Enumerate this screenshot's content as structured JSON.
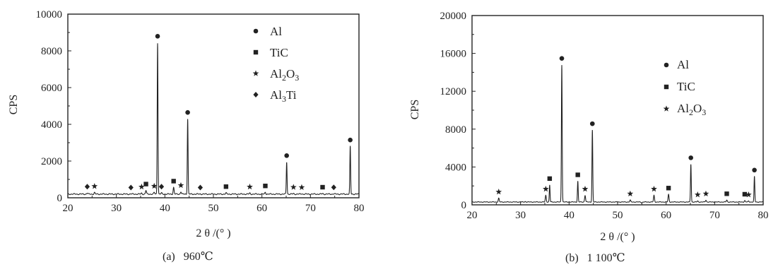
{
  "chart_data": [
    {
      "type": "line",
      "caption": "(a)   960℃",
      "xlabel": "2 θ /(°  )",
      "ylabel": "CPS",
      "xlim": [
        20,
        80
      ],
      "ylim": [
        0,
        10000
      ],
      "xticks": [
        "20",
        "30",
        "40",
        "50",
        "60",
        "70",
        "80"
      ],
      "yticks": [
        "0",
        "2000",
        "4000",
        "6000",
        "8000",
        "10000"
      ],
      "grid": false,
      "legend_position": "top-right",
      "legend": [
        {
          "symbol": "circle",
          "label": "Al"
        },
        {
          "symbol": "square",
          "label": "TiC"
        },
        {
          "symbol": "star",
          "label": "Al₂O₃"
        },
        {
          "symbol": "diamond",
          "label": "Al₃Ti"
        }
      ],
      "baseline": 200,
      "peaks": [
        {
          "x": 24.0,
          "y": 260,
          "phase": "diamond"
        },
        {
          "x": 25.5,
          "y": 280,
          "phase": "star"
        },
        {
          "x": 33.0,
          "y": 210,
          "phase": "diamond"
        },
        {
          "x": 35.2,
          "y": 250,
          "phase": "star"
        },
        {
          "x": 36.1,
          "y": 400,
          "phase": "square"
        },
        {
          "x": 37.8,
          "y": 290,
          "phase": "star"
        },
        {
          "x": 38.5,
          "y": 8450,
          "phase": "circle"
        },
        {
          "x": 39.3,
          "y": 260,
          "phase": "diamond"
        },
        {
          "x": 41.8,
          "y": 560,
          "phase": "square"
        },
        {
          "x": 43.3,
          "y": 330,
          "phase": "star"
        },
        {
          "x": 44.7,
          "y": 4300,
          "phase": "circle"
        },
        {
          "x": 47.3,
          "y": 210,
          "phase": "diamond"
        },
        {
          "x": 52.6,
          "y": 260,
          "phase": "square"
        },
        {
          "x": 57.5,
          "y": 250,
          "phase": "star"
        },
        {
          "x": 60.7,
          "y": 300,
          "phase": "square"
        },
        {
          "x": 65.1,
          "y": 1950,
          "phase": "circle"
        },
        {
          "x": 66.5,
          "y": 230,
          "phase": "star"
        },
        {
          "x": 68.2,
          "y": 220,
          "phase": "star"
        },
        {
          "x": 72.5,
          "y": 230,
          "phase": "square"
        },
        {
          "x": 74.8,
          "y": 220,
          "phase": "diamond"
        },
        {
          "x": 78.2,
          "y": 2800,
          "phase": "circle"
        }
      ]
    },
    {
      "type": "line",
      "caption": "(b)   1 100℃",
      "xlabel": "2 θ /(°  )",
      "ylabel": "CPS",
      "xlim": [
        20,
        80
      ],
      "ylim": [
        0,
        20000
      ],
      "xticks": [
        "20",
        "30",
        "40",
        "50",
        "60",
        "70",
        "80"
      ],
      "yticks": [
        "0",
        "4000",
        "8000",
        "12000",
        "16000",
        "20000"
      ],
      "grid": false,
      "legend_position": "top-right",
      "legend": [
        {
          "symbol": "circle",
          "label": "Al"
        },
        {
          "symbol": "square",
          "label": "TiC"
        },
        {
          "symbol": "star",
          "label": "Al₂O₃"
        }
      ],
      "baseline": 300,
      "peaks": [
        {
          "x": 25.5,
          "y": 700,
          "phase": "star"
        },
        {
          "x": 31.0,
          "y": 350,
          "phase": ""
        },
        {
          "x": 35.2,
          "y": 1000,
          "phase": "star"
        },
        {
          "x": 36.0,
          "y": 2100,
          "phase": "square"
        },
        {
          "x": 38.5,
          "y": 14800,
          "phase": "circle"
        },
        {
          "x": 41.8,
          "y": 2500,
          "phase": "square"
        },
        {
          "x": 43.3,
          "y": 1000,
          "phase": "star"
        },
        {
          "x": 44.8,
          "y": 7900,
          "phase": "circle"
        },
        {
          "x": 52.6,
          "y": 500,
          "phase": "star"
        },
        {
          "x": 55.0,
          "y": 200,
          "phase": ""
        },
        {
          "x": 57.5,
          "y": 1000,
          "phase": "star"
        },
        {
          "x": 60.5,
          "y": 1100,
          "phase": "square"
        },
        {
          "x": 65.1,
          "y": 4300,
          "phase": "circle"
        },
        {
          "x": 66.5,
          "y": 400,
          "phase": "star"
        },
        {
          "x": 68.2,
          "y": 500,
          "phase": "star"
        },
        {
          "x": 72.5,
          "y": 500,
          "phase": "square"
        },
        {
          "x": 76.2,
          "y": 450,
          "phase": "square"
        },
        {
          "x": 77.0,
          "y": 400,
          "phase": "star"
        },
        {
          "x": 78.2,
          "y": 3000,
          "phase": "circle"
        }
      ]
    }
  ]
}
